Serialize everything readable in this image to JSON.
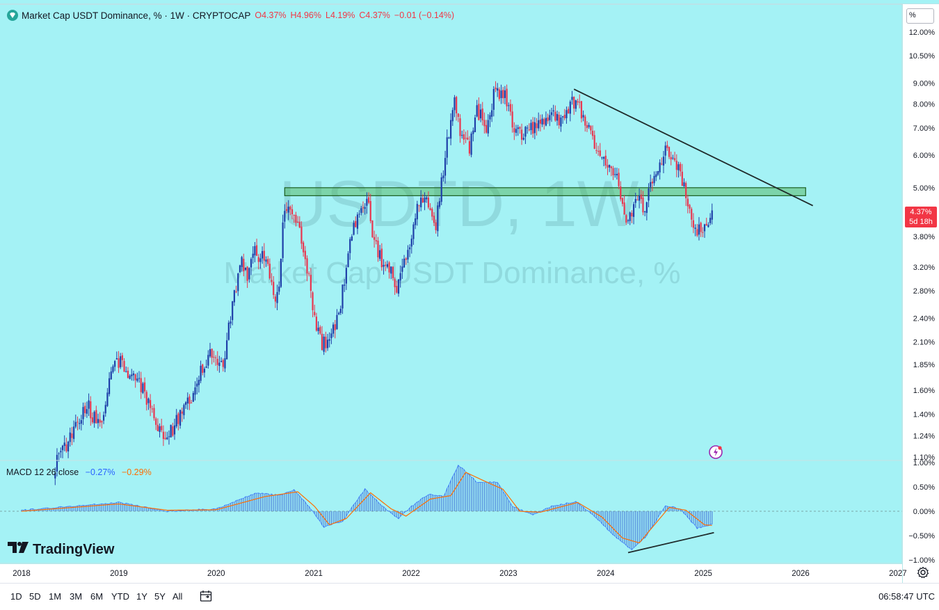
{
  "header": {
    "symbol_title": "Market Cap USDT Dominance, % · 1W · CRYPTOCAP",
    "open": "O4.37%",
    "high": "H4.96%",
    "low": "L4.19%",
    "close": "C4.37%",
    "change": "−0.01 (−0.14%)"
  },
  "watermark": {
    "ticker": "USDTD, 1W",
    "name": "Market Cap USDT Dominance, %"
  },
  "scale_mode": "%",
  "price_badge": {
    "value": "4.37%",
    "countdown": "5d 18h"
  },
  "macd_legend": {
    "label": "MACD 12 26 close",
    "macd": "−0.27%",
    "signal": "−0.29%"
  },
  "brand": "TradingView",
  "range_buttons": [
    "1D",
    "5D",
    "1M",
    "3M",
    "6M",
    "YTD",
    "1Y",
    "5Y",
    "All"
  ],
  "clock": "06:58:47 UTC",
  "colors": {
    "background": "#a4f2f5",
    "up": "#1e3fa8",
    "down": "#e8364f",
    "zone": "#4caf50",
    "trendline": "#1f2a2a",
    "macd_line": "#2962ff",
    "signal_line": "#ff6d00"
  },
  "chart_data": {
    "type": "candlestick",
    "timeframe": "1W",
    "y_scale": "log",
    "y_ticks": [
      "12.00%",
      "10.50%",
      "9.00%",
      "8.00%",
      "7.00%",
      "6.00%",
      "5.00%",
      "3.80%",
      "3.20%",
      "2.80%",
      "2.40%",
      "2.10%",
      "1.85%",
      "1.60%",
      "1.40%",
      "1.24%",
      "1.10%"
    ],
    "x_ticks": [
      "2018",
      "2019",
      "2020",
      "2021",
      "2022",
      "2023",
      "2024",
      "2025",
      "2026",
      "2027"
    ],
    "price_path": [
      [
        "2018-05-07",
        1.05
      ],
      [
        "2018-07-02",
        1.22
      ],
      [
        "2018-09-03",
        1.48
      ],
      [
        "2018-10-22",
        1.28
      ],
      [
        "2018-11-19",
        1.55
      ],
      [
        "2018-12-17",
        1.95
      ],
      [
        "2019-01-21",
        1.8
      ],
      [
        "2019-04-01",
        1.62
      ],
      [
        "2019-05-27",
        1.3
      ],
      [
        "2019-06-24",
        1.18
      ],
      [
        "2019-08-05",
        1.35
      ],
      [
        "2019-09-30",
        1.55
      ],
      [
        "2019-10-28",
        1.75
      ],
      [
        "2019-12-16",
        2.0
      ],
      [
        "2020-01-27",
        1.78
      ],
      [
        "2020-03-16",
        2.9
      ],
      [
        "2020-04-06",
        3.3
      ],
      [
        "2020-04-27",
        3.0
      ],
      [
        "2020-05-25",
        3.5
      ],
      [
        "2020-07-06",
        3.3
      ],
      [
        "2020-08-03",
        2.7
      ],
      [
        "2020-08-24",
        2.78
      ],
      [
        "2020-09-07",
        4.2
      ],
      [
        "2020-10-05",
        4.6
      ],
      [
        "2020-10-26",
        4.2
      ],
      [
        "2020-11-30",
        3.4
      ],
      [
        "2021-01-04",
        2.4
      ],
      [
        "2021-02-01",
        2.05
      ],
      [
        "2021-03-08",
        2.2
      ],
      [
        "2021-04-05",
        2.4
      ],
      [
        "2021-05-17",
        3.6
      ],
      [
        "2021-06-21",
        4.5
      ],
      [
        "2021-07-19",
        4.7
      ],
      [
        "2021-08-16",
        3.7
      ],
      [
        "2021-09-13",
        3.3
      ],
      [
        "2021-10-25",
        3.05
      ],
      [
        "2021-11-08",
        2.75
      ],
      [
        "2021-12-06",
        3.3
      ],
      [
        "2022-01-10",
        3.95
      ],
      [
        "2022-01-24",
        4.5
      ],
      [
        "2022-02-28",
        4.65
      ],
      [
        "2022-04-04",
        3.95
      ],
      [
        "2022-05-09",
        6.0
      ],
      [
        "2022-06-13",
        8.0
      ],
      [
        "2022-07-04",
        6.8
      ],
      [
        "2022-08-08",
        6.2
      ],
      [
        "2022-09-05",
        7.7
      ],
      [
        "2022-10-10",
        7.1
      ],
      [
        "2022-11-14",
        8.7
      ],
      [
        "2022-12-19",
        8.4
      ],
      [
        "2023-01-16",
        7.1
      ],
      [
        "2023-02-13",
        6.7
      ],
      [
        "2023-04-03",
        7.0
      ],
      [
        "2023-05-22",
        7.4
      ],
      [
        "2023-06-19",
        7.7
      ],
      [
        "2023-07-17",
        7.3
      ],
      [
        "2023-08-21",
        8.0
      ],
      [
        "2023-09-18",
        8.1
      ],
      [
        "2023-10-23",
        7.0
      ],
      [
        "2023-11-27",
        6.2
      ],
      [
        "2024-01-01",
        5.6
      ],
      [
        "2024-02-12",
        5.2
      ],
      [
        "2024-03-18",
        4.0
      ],
      [
        "2024-04-08",
        4.3
      ],
      [
        "2024-04-29",
        4.85
      ],
      [
        "2024-05-20",
        4.4
      ],
      [
        "2024-06-24",
        5.2
      ],
      [
        "2024-07-29",
        5.9
      ],
      [
        "2024-08-05",
        6.2
      ],
      [
        "2024-09-02",
        5.8
      ],
      [
        "2024-10-07",
        5.4
      ],
      [
        "2024-11-04",
        4.5
      ],
      [
        "2024-12-02",
        3.9
      ],
      [
        "2024-12-30",
        4.05
      ],
      [
        "2025-01-20",
        3.95
      ],
      [
        "2025-02-03",
        4.37
      ]
    ],
    "resistance_zone": {
      "from": "2020-09-14",
      "to": "2026-01-20",
      "y_low": 4.78,
      "y_high": 5.0
    },
    "trendline": {
      "start": [
        "2023-09-04",
        8.7
      ],
      "end": [
        "2026-02-16",
        4.52
      ]
    },
    "macd": {
      "params": "12 26 close",
      "y_ticks": [
        "1.00%",
        "0.50%",
        "0.00%",
        "−0.50%",
        "−1.00%"
      ],
      "path": [
        [
          "2018-01-01",
          0.02
        ],
        [
          "2019-01-01",
          0.18
        ],
        [
          "2019-07-01",
          0.0
        ],
        [
          "2020-01-01",
          0.05
        ],
        [
          "2020-06-01",
          0.38
        ],
        [
          "2020-09-01",
          0.32
        ],
        [
          "2020-10-19",
          0.45
        ],
        [
          "2020-12-21",
          0.05
        ],
        [
          "2021-02-08",
          -0.33
        ],
        [
          "2021-04-19",
          -0.2
        ],
        [
          "2021-07-12",
          0.45
        ],
        [
          "2021-09-27",
          0.05
        ],
        [
          "2021-11-15",
          -0.15
        ],
        [
          "2022-01-03",
          0.1
        ],
        [
          "2022-03-07",
          0.35
        ],
        [
          "2022-05-02",
          0.3
        ],
        [
          "2022-06-27",
          0.95
        ],
        [
          "2022-09-05",
          0.6
        ],
        [
          "2022-11-21",
          0.6
        ],
        [
          "2023-01-16",
          0.1
        ],
        [
          "2023-04-03",
          -0.08
        ],
        [
          "2023-06-12",
          0.1
        ],
        [
          "2023-09-11",
          0.2
        ],
        [
          "2023-11-20",
          -0.1
        ],
        [
          "2024-01-22",
          -0.45
        ],
        [
          "2024-04-08",
          -0.8
        ],
        [
          "2024-06-03",
          -0.5
        ],
        [
          "2024-08-12",
          0.12
        ],
        [
          "2024-10-07",
          0.05
        ],
        [
          "2024-12-09",
          -0.35
        ],
        [
          "2025-02-03",
          -0.27
        ]
      ],
      "signal_path": [
        [
          "2018-01-01",
          0.0
        ],
        [
          "2019-01-01",
          0.15
        ],
        [
          "2019-07-01",
          0.02
        ],
        [
          "2020-01-01",
          0.03
        ],
        [
          "2020-07-01",
          0.3
        ],
        [
          "2020-11-02",
          0.4
        ],
        [
          "2021-01-04",
          0.1
        ],
        [
          "2021-03-01",
          -0.28
        ],
        [
          "2021-05-03",
          -0.15
        ],
        [
          "2021-08-02",
          0.38
        ],
        [
          "2021-10-18",
          0.05
        ],
        [
          "2021-12-13",
          -0.1
        ],
        [
          "2022-03-14",
          0.25
        ],
        [
          "2022-05-30",
          0.32
        ],
        [
          "2022-07-25",
          0.8
        ],
        [
          "2022-10-03",
          0.62
        ],
        [
          "2022-12-12",
          0.45
        ],
        [
          "2023-02-13",
          0.0
        ],
        [
          "2023-05-01",
          -0.02
        ],
        [
          "2023-09-18",
          0.18
        ],
        [
          "2023-12-18",
          -0.12
        ],
        [
          "2024-03-04",
          -0.55
        ],
        [
          "2024-05-06",
          -0.65
        ],
        [
          "2024-08-26",
          0.08
        ],
        [
          "2024-10-28",
          0.02
        ],
        [
          "2025-01-06",
          -0.28
        ],
        [
          "2025-02-03",
          -0.29
        ]
      ],
      "divergence_line": {
        "start": [
          "2024-03-25",
          -0.85
        ],
        "end": [
          "2025-02-10",
          -0.44
        ]
      }
    }
  }
}
